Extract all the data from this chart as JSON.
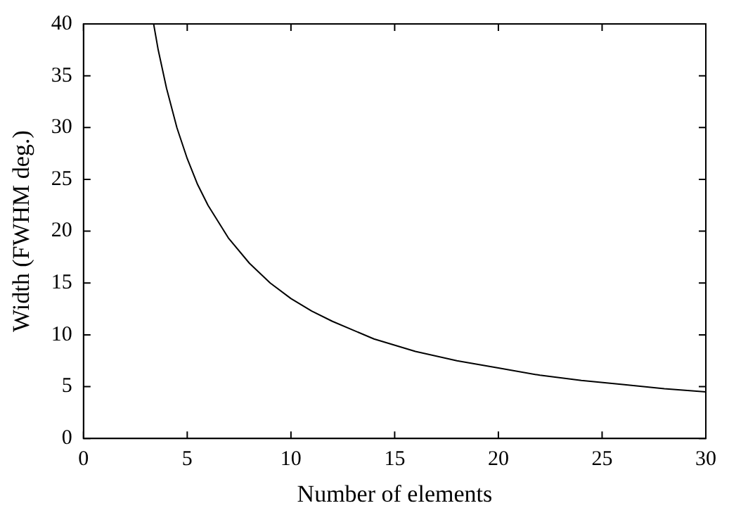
{
  "chart_data": {
    "type": "line",
    "xlabel": "Number of elements",
    "ylabel": "Width (FWHM deg.)",
    "x": [
      3.38,
      3.6,
      4,
      4.5,
      5,
      5.5,
      6,
      7,
      8,
      9,
      10,
      11,
      12,
      14,
      16,
      18,
      20,
      22,
      24,
      26,
      28,
      30
    ],
    "series": [
      {
        "color": "#000000",
        "values": [
          40,
          37.5,
          33.8,
          30,
          27,
          24.5,
          22.5,
          19.3,
          16.9,
          15,
          13.5,
          12.3,
          11.3,
          9.6,
          8.4,
          7.5,
          6.8,
          6.1,
          5.6,
          5.2,
          4.8,
          4.5
        ]
      }
    ],
    "xlim": [
      0,
      30
    ],
    "xticks": [
      0,
      5,
      10,
      15,
      20,
      25,
      30
    ],
    "ylim": [
      0,
      40
    ],
    "yticks": [
      0,
      5,
      10,
      15,
      20,
      25,
      30,
      35,
      40
    ],
    "grid": false,
    "legend": false,
    "marker": "none",
    "line_style": "solid"
  }
}
